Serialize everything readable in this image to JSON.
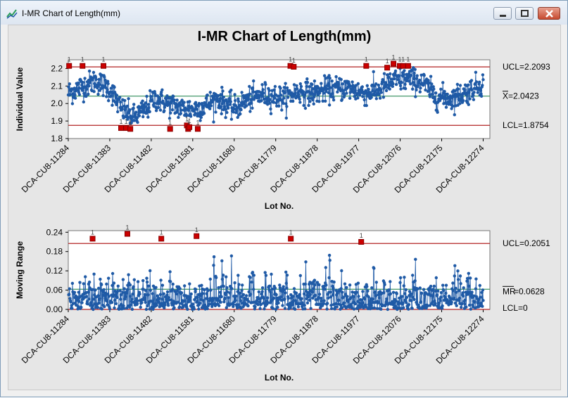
{
  "window": {
    "title": "I-MR Chart of Length(mm)"
  },
  "colors": {
    "series": "#1f5aa6",
    "limit": "#b22222",
    "center": "#2e8b57",
    "flag": "#cc0000",
    "panel": "#e6e6e6"
  },
  "icons": {
    "app": "minitab-chart-icon",
    "minimize": "minimize-icon",
    "maximize": "maximize-icon",
    "close": "close-icon"
  },
  "chart_data": [
    {
      "type": "line",
      "panel": "individuals",
      "title": "I-MR Chart of Length(mm)",
      "xlabel": "Lot No.",
      "ylabel": "Individual Value",
      "xlim": [
        11284,
        12290
      ],
      "ylim": [
        1.8,
        2.25
      ],
      "yticks": [
        1.8,
        1.9,
        2.0,
        2.1,
        2.2
      ],
      "ytick_labels": [
        "1.8",
        "1.9",
        "2.0",
        "2.1",
        "2.2"
      ],
      "xticks": [
        11284,
        11383,
        11482,
        11581,
        11680,
        11779,
        11878,
        11977,
        12076,
        12175,
        12274
      ],
      "xtick_labels": [
        "DCA-CU8-11284",
        "DCA-CU8-11383",
        "DCA-CU8-11482",
        "DCA-CU8-11581",
        "DCA-CU8-11680",
        "DCA-CU8-11779",
        "DCA-CU8-11878",
        "DCA-CU8-11977",
        "DCA-CU8-12076",
        "DCA-CU8-12175",
        "DCA-CU8-12274"
      ],
      "limits": {
        "ucl": 2.2093,
        "center": 2.0423,
        "lcl": 1.8754
      },
      "limit_labels": {
        "ucl": "UCL=2.2093",
        "center": "=2.0423",
        "center_symbol": "X",
        "lcl": "LCL=1.8754"
      },
      "trend": [
        [
          11284,
          2.06
        ],
        [
          11310,
          2.09
        ],
        [
          11350,
          2.13
        ],
        [
          11385,
          2.08
        ],
        [
          11410,
          1.97
        ],
        [
          11440,
          1.92
        ],
        [
          11470,
          1.97
        ],
        [
          11490,
          2.03
        ],
        [
          11520,
          2.0
        ],
        [
          11560,
          1.97
        ],
        [
          11590,
          1.97
        ],
        [
          11620,
          2.0
        ],
        [
          11640,
          2.03
        ],
        [
          11680,
          1.97
        ],
        [
          11710,
          2.02
        ],
        [
          11750,
          2.05
        ],
        [
          11800,
          2.03
        ],
        [
          11830,
          2.07
        ],
        [
          11870,
          2.06
        ],
        [
          11900,
          2.08
        ],
        [
          11950,
          2.09
        ],
        [
          11990,
          2.06
        ],
        [
          12020,
          2.07
        ],
        [
          12060,
          2.13
        ],
        [
          12100,
          2.14
        ],
        [
          12130,
          2.12
        ],
        [
          12160,
          2.04
        ],
        [
          12200,
          2.03
        ],
        [
          12230,
          2.06
        ],
        [
          12260,
          2.1
        ],
        [
          12274,
          2.12
        ]
      ],
      "noise_sd": 0.035,
      "flags_label": "1",
      "flags": [
        [
          11286,
          2.215
        ],
        [
          11318,
          2.215
        ],
        [
          11368,
          2.215
        ],
        [
          11410,
          1.86
        ],
        [
          11422,
          1.86
        ],
        [
          11432,
          1.855
        ],
        [
          11527,
          1.855
        ],
        [
          11567,
          1.875
        ],
        [
          11570,
          1.855
        ],
        [
          11573,
          1.865
        ],
        [
          11593,
          1.855
        ],
        [
          11814,
          2.215
        ],
        [
          11822,
          2.21
        ],
        [
          11995,
          2.215
        ],
        [
          12045,
          2.205
        ],
        [
          12060,
          2.228
        ],
        [
          12075,
          2.215
        ],
        [
          12083,
          2.215
        ],
        [
          12095,
          2.215
        ]
      ]
    },
    {
      "type": "line",
      "panel": "moving-range",
      "xlabel": "Lot No.",
      "ylabel": "Moving Range",
      "xlim": [
        11284,
        12290
      ],
      "ylim": [
        0.0,
        0.245
      ],
      "yticks": [
        0.0,
        0.06,
        0.12,
        0.18,
        0.24
      ],
      "ytick_labels": [
        "0.00",
        "0.06",
        "0.12",
        "0.18",
        "0.24"
      ],
      "xticks": [
        11284,
        11383,
        11482,
        11581,
        11680,
        11779,
        11878,
        11977,
        12076,
        12175,
        12274
      ],
      "xtick_labels": [
        "DCA-CU8-11284",
        "DCA-CU8-11383",
        "DCA-CU8-11482",
        "DCA-CU8-11581",
        "DCA-CU8-11680",
        "DCA-CU8-11779",
        "DCA-CU8-11878",
        "DCA-CU8-11977",
        "DCA-CU8-12076",
        "DCA-CU8-12175",
        "DCA-CU8-12274"
      ],
      "limits": {
        "ucl": 0.2051,
        "center": 0.0628,
        "lcl": 0
      },
      "limit_labels": {
        "ucl": "UCL=0.2051",
        "center": "=0.0628",
        "center_symbol": "MR",
        "lcl": "LCL=0"
      },
      "mean_range": 0.0628,
      "flags_label": "1",
      "flags": [
        [
          11342,
          0.22
        ],
        [
          11425,
          0.235
        ],
        [
          11506,
          0.22
        ],
        [
          11590,
          0.228
        ],
        [
          11815,
          0.22
        ],
        [
          11983,
          0.21
        ]
      ]
    }
  ]
}
